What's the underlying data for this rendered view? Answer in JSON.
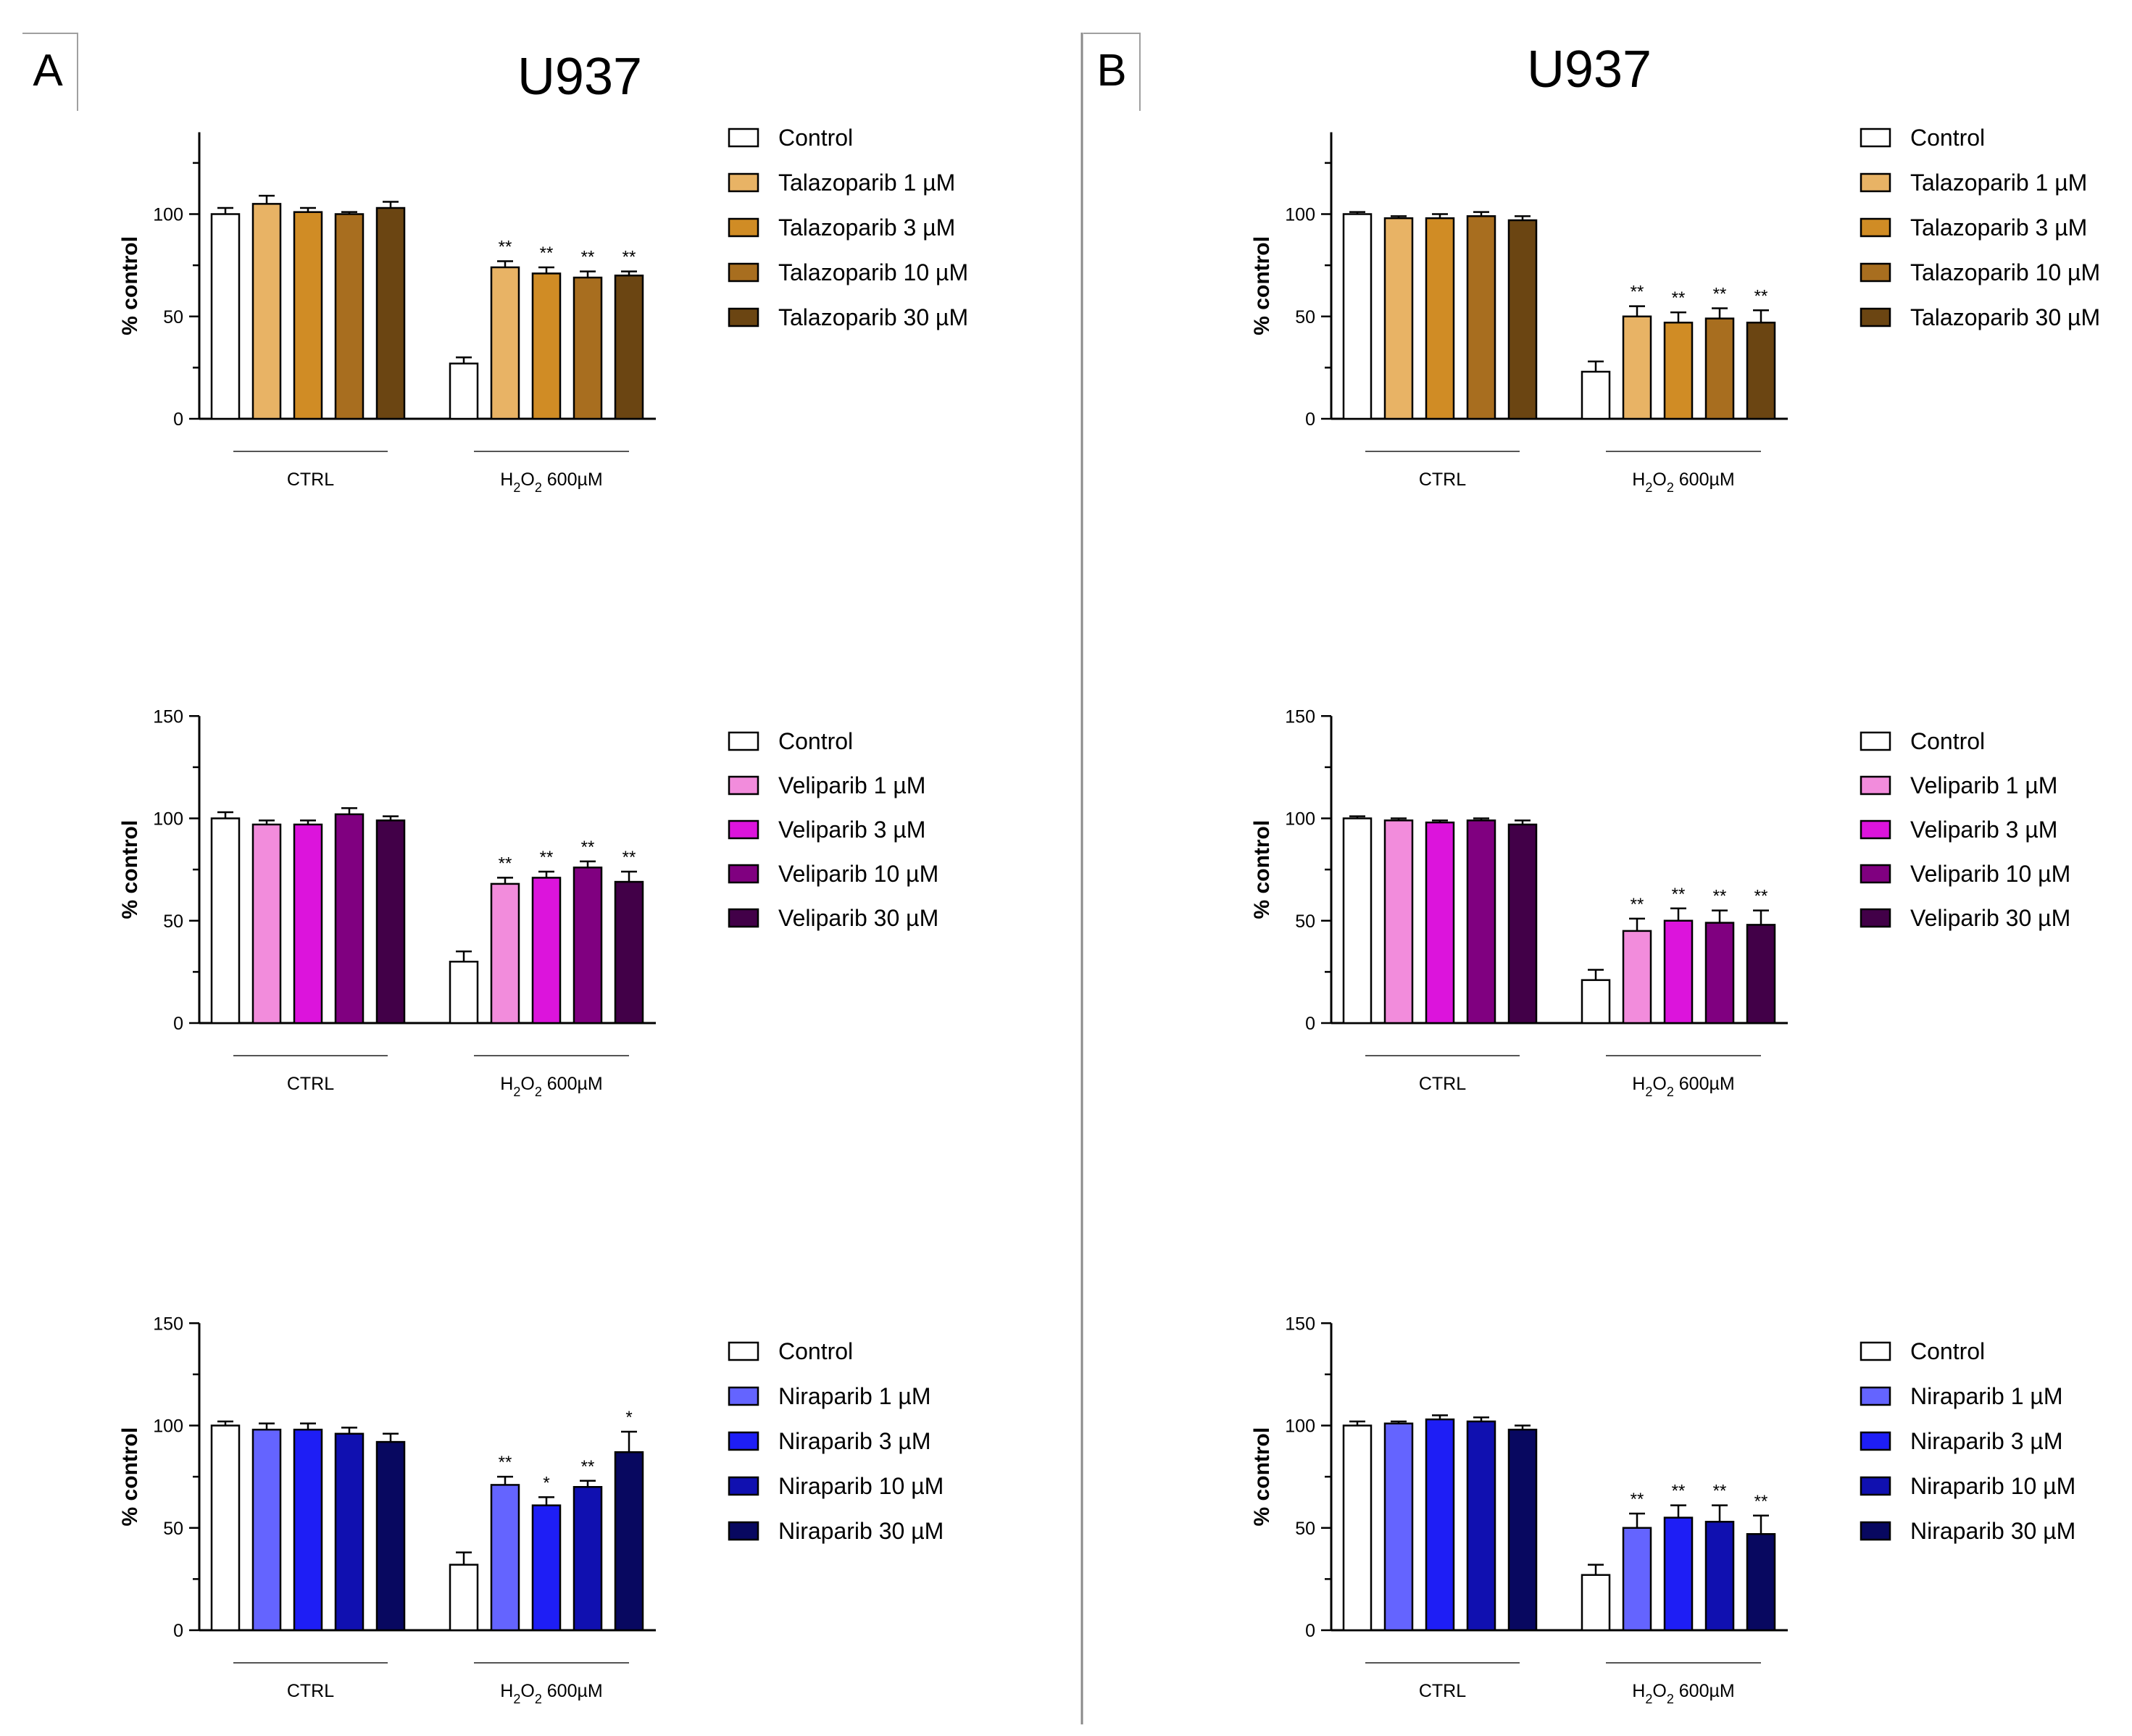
{
  "panels": [
    {
      "label": "A",
      "title": "U937"
    },
    {
      "label": "B",
      "title": "U937"
    }
  ],
  "colors": {
    "control": "#ffffff",
    "talazoparib": [
      "#e8b365",
      "#d08c25",
      "#a86e1f",
      "#6b4512"
    ],
    "veliparib": [
      "#f28cdc",
      "#dc14dc",
      "#800080",
      "#420048"
    ],
    "niraparib": [
      "#6464ff",
      "#1e1ef5",
      "#1010b0",
      "#080860"
    ]
  },
  "chart_data": [
    {
      "panel": "A",
      "row": 1,
      "type": "bar",
      "ylabel": "% control",
      "yticks": [
        0,
        50,
        100
      ],
      "ylim": [
        0,
        140
      ],
      "groups": [
        "CTRL",
        "H2O2 600µM"
      ],
      "group_labels": [
        {
          "text": "CTRL"
        },
        {
          "text": "H",
          "sub1": "2",
          "mid": "O",
          "sub2": "2",
          "tail": " 600µM"
        }
      ],
      "legend_position": "right",
      "series": [
        {
          "name": "Control",
          "values": [
            100,
            27
          ],
          "errors": [
            3,
            3
          ],
          "stars": [
            "",
            ""
          ]
        },
        {
          "name": "Talazoparib 1 µM",
          "values": [
            105,
            74
          ],
          "errors": [
            4,
            3
          ],
          "stars": [
            "",
            "**"
          ]
        },
        {
          "name": "Talazoparib 3 µM",
          "values": [
            101,
            71
          ],
          "errors": [
            2,
            3
          ],
          "stars": [
            "",
            "**"
          ]
        },
        {
          "name": "Talazoparib 10 µM",
          "values": [
            100,
            69
          ],
          "errors": [
            1,
            3
          ],
          "stars": [
            "",
            "**"
          ]
        },
        {
          "name": "Talazoparib 30 µM",
          "values": [
            103,
            70
          ],
          "errors": [
            3,
            2
          ],
          "stars": [
            "",
            "**"
          ]
        }
      ]
    },
    {
      "panel": "A",
      "row": 2,
      "type": "bar",
      "ylabel": "% control",
      "yticks": [
        0,
        50,
        100,
        150
      ],
      "ylim": [
        0,
        150
      ],
      "groups": [
        "CTRL",
        "H2O2 600µM"
      ],
      "group_labels": [
        {
          "text": "CTRL"
        },
        {
          "text": "H",
          "sub1": "2",
          "mid": "O",
          "sub2": "2",
          "tail": " 600µM"
        }
      ],
      "legend_position": "right",
      "series": [
        {
          "name": "Control",
          "values": [
            100,
            30
          ],
          "errors": [
            3,
            5
          ],
          "stars": [
            "",
            ""
          ]
        },
        {
          "name": "Veliparib  1 µM",
          "values": [
            97,
            68
          ],
          "errors": [
            2,
            3
          ],
          "stars": [
            "",
            "**"
          ]
        },
        {
          "name": "Veliparib  3 µM",
          "values": [
            97,
            71
          ],
          "errors": [
            2,
            3
          ],
          "stars": [
            "",
            "**"
          ]
        },
        {
          "name": "Veliparib  10 µM",
          "values": [
            102,
            76
          ],
          "errors": [
            3,
            3
          ],
          "stars": [
            "",
            "**"
          ]
        },
        {
          "name": "Veliparib  30 µM",
          "values": [
            99,
            69
          ],
          "errors": [
            2,
            5
          ],
          "stars": [
            "",
            "**"
          ]
        }
      ]
    },
    {
      "panel": "A",
      "row": 3,
      "type": "bar",
      "ylabel": "% control",
      "yticks": [
        0,
        50,
        100,
        150
      ],
      "ylim": [
        0,
        150
      ],
      "groups": [
        "CTRL",
        "H2O2 600µM"
      ],
      "group_labels": [
        {
          "text": "CTRL"
        },
        {
          "text": "H",
          "sub1": "2",
          "mid": "O",
          "sub2": "2",
          "tail": " 600µM"
        }
      ],
      "legend_position": "right",
      "series": [
        {
          "name": "Control",
          "values": [
            100,
            32
          ],
          "errors": [
            2,
            6
          ],
          "stars": [
            "",
            ""
          ]
        },
        {
          "name": "Niraparib 1 µM",
          "values": [
            98,
            71
          ],
          "errors": [
            3,
            4
          ],
          "stars": [
            "",
            "**"
          ]
        },
        {
          "name": "Niraparib 3 µM",
          "values": [
            98,
            61
          ],
          "errors": [
            3,
            4
          ],
          "stars": [
            "",
            "*"
          ]
        },
        {
          "name": "Niraparib 10 µM",
          "values": [
            96,
            70
          ],
          "errors": [
            3,
            3
          ],
          "stars": [
            "",
            "**"
          ]
        },
        {
          "name": "Niraparib 30 µM",
          "values": [
            92,
            87
          ],
          "errors": [
            4,
            10
          ],
          "stars": [
            "",
            "*"
          ]
        }
      ]
    },
    {
      "panel": "B",
      "row": 1,
      "type": "bar",
      "ylabel": "% control",
      "yticks": [
        0,
        50,
        100
      ],
      "ylim": [
        0,
        140
      ],
      "groups": [
        "CTRL",
        "H2O2 600µM"
      ],
      "group_labels": [
        {
          "text": "CTRL"
        },
        {
          "text": "H",
          "sub1": "2",
          "mid": "O",
          "sub2": "2",
          "tail": " 600µM"
        }
      ],
      "legend_position": "right",
      "series": [
        {
          "name": "Control",
          "values": [
            100,
            23
          ],
          "errors": [
            1,
            5
          ],
          "stars": [
            "",
            ""
          ]
        },
        {
          "name": "Talazoparib 1 µM",
          "values": [
            98,
            50
          ],
          "errors": [
            1,
            5
          ],
          "stars": [
            "",
            "**"
          ]
        },
        {
          "name": "Talazoparib 3 µM",
          "values": [
            98,
            47
          ],
          "errors": [
            2,
            5
          ],
          "stars": [
            "",
            "**"
          ]
        },
        {
          "name": "Talazoparib 10 µM",
          "values": [
            99,
            49
          ],
          "errors": [
            2,
            5
          ],
          "stars": [
            "",
            "**"
          ]
        },
        {
          "name": "Talazoparib 30 µM",
          "values": [
            97,
            47
          ],
          "errors": [
            2,
            6
          ],
          "stars": [
            "",
            "**"
          ]
        }
      ]
    },
    {
      "panel": "B",
      "row": 2,
      "type": "bar",
      "ylabel": "% control",
      "yticks": [
        0,
        50,
        100,
        150
      ],
      "ylim": [
        0,
        150
      ],
      "groups": [
        "CTRL",
        "H2O2 600µM"
      ],
      "group_labels": [
        {
          "text": "CTRL"
        },
        {
          "text": "H",
          "sub1": "2",
          "mid": "O",
          "sub2": "2",
          "tail": " 600µM"
        }
      ],
      "legend_position": "right",
      "series": [
        {
          "name": "Control",
          "values": [
            100,
            21
          ],
          "errors": [
            1,
            5
          ],
          "stars": [
            "",
            ""
          ]
        },
        {
          "name": "Veliparib  1 µM",
          "values": [
            99,
            45
          ],
          "errors": [
            1,
            6
          ],
          "stars": [
            "",
            "**"
          ]
        },
        {
          "name": "Veliparib  3 µM",
          "values": [
            98,
            50
          ],
          "errors": [
            1,
            6
          ],
          "stars": [
            "",
            "**"
          ]
        },
        {
          "name": "Veliparib  10 µM",
          "values": [
            99,
            49
          ],
          "errors": [
            1,
            6
          ],
          "stars": [
            "",
            "**"
          ]
        },
        {
          "name": "Veliparib  30 µM",
          "values": [
            97,
            48
          ],
          "errors": [
            2,
            7
          ],
          "stars": [
            "",
            "**"
          ]
        }
      ]
    },
    {
      "panel": "B",
      "row": 3,
      "type": "bar",
      "ylabel": "% control",
      "yticks": [
        0,
        50,
        100,
        150
      ],
      "ylim": [
        0,
        150
      ],
      "groups": [
        "CTRL",
        "H2O2 600µM"
      ],
      "group_labels": [
        {
          "text": "CTRL"
        },
        {
          "text": "H",
          "sub1": "2",
          "mid": "O",
          "sub2": "2",
          "tail": " 600µM"
        }
      ],
      "legend_position": "right",
      "series": [
        {
          "name": "Control",
          "values": [
            100,
            27
          ],
          "errors": [
            2,
            5
          ],
          "stars": [
            "",
            ""
          ]
        },
        {
          "name": "Niraparib 1 µM",
          "values": [
            101,
            50
          ],
          "errors": [
            1,
            7
          ],
          "stars": [
            "",
            "**"
          ]
        },
        {
          "name": "Niraparib 3 µM",
          "values": [
            103,
            55
          ],
          "errors": [
            2,
            6
          ],
          "stars": [
            "",
            "**"
          ]
        },
        {
          "name": "Niraparib 10 µM",
          "values": [
            102,
            53
          ],
          "errors": [
            2,
            8
          ],
          "stars": [
            "",
            "**"
          ]
        },
        {
          "name": "Niraparib 30 µM",
          "values": [
            98,
            47
          ],
          "errors": [
            2,
            9
          ],
          "stars": [
            "",
            "**"
          ]
        }
      ]
    }
  ]
}
